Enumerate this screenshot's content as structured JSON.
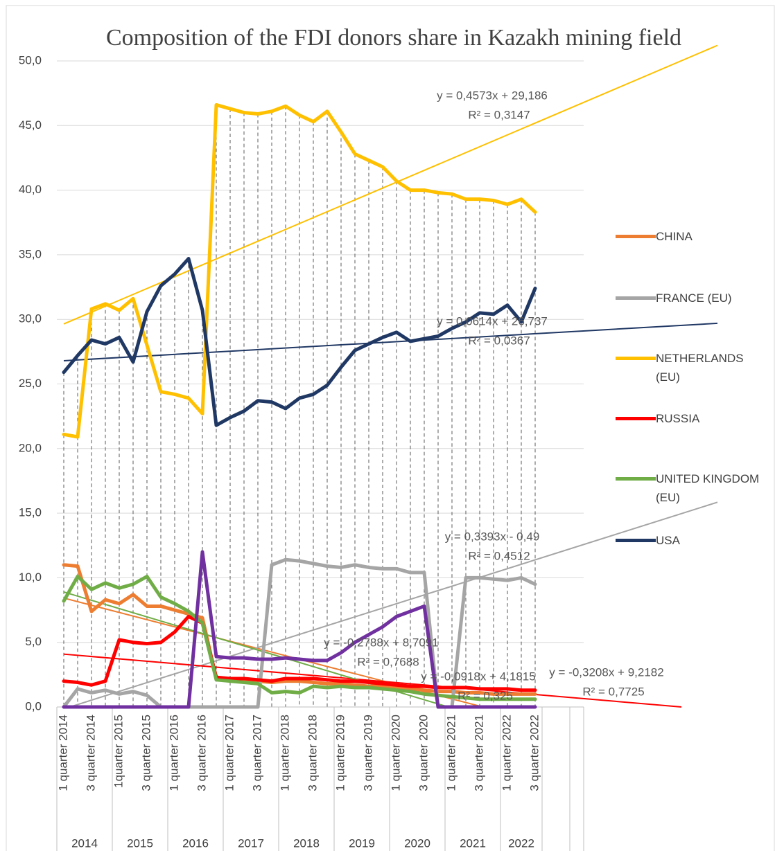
{
  "chart_data": {
    "type": "line",
    "title": "Composition of the FDI donors share in Kazakh mining field",
    "categories": [
      "1 quarter 2014",
      null,
      "3 quarter 2014",
      null,
      "1quarter 2015",
      null,
      "3 quarter 2015",
      null,
      "1 quarter 2016",
      null,
      "3 quarter 2016",
      null,
      "1 quarter 2017",
      null,
      "3 quarter 2017",
      null,
      "1 quarter 2018",
      null,
      "3 quarter 2018",
      null,
      "1 quarter 2019",
      null,
      "3 quarter 2019",
      null,
      "1 quarter 2020",
      null,
      "3 quarter 2020",
      null,
      "1 quarter 2021",
      null,
      "3 quarter 2021",
      null,
      "1 quarter 2022",
      null,
      "3 quarter 2022"
    ],
    "year_groups": [
      "2014",
      "2015",
      "2016",
      "2017",
      "2018",
      "2019",
      "2020",
      "2021",
      "2022"
    ],
    "ylim": [
      0,
      50
    ],
    "yticks": [
      {
        "value": 0,
        "label": "0,0"
      },
      {
        "value": 5,
        "label": "5,0"
      },
      {
        "value": 10,
        "label": "10,0"
      },
      {
        "value": 15,
        "label": "15,0"
      },
      {
        "value": 20,
        "label": "20,0"
      },
      {
        "value": 25,
        "label": "25,0"
      },
      {
        "value": 30,
        "label": "30,0"
      },
      {
        "value": 35,
        "label": "35,0"
      },
      {
        "value": 40,
        "label": "40,0"
      },
      {
        "value": 45,
        "label": "45,0"
      },
      {
        "value": 50,
        "label": "50,0"
      }
    ],
    "grid": true,
    "drop_lines": true,
    "legend": "right",
    "series": [
      {
        "name": "CHINA",
        "color": "#ed7d31",
        "values": [
          11.0,
          10.9,
          7.4,
          8.3,
          8.0,
          8.7,
          7.8,
          7.8,
          7.5,
          7.2,
          6.9,
          2.2,
          2.1,
          2.0,
          2.0,
          1.9,
          2.0,
          2.0,
          1.9,
          1.8,
          1.8,
          1.7,
          1.6,
          1.6,
          1.5,
          1.4,
          1.3,
          1.2,
          1.2,
          1.1,
          1.1,
          1.0,
          1.0,
          1.0,
          1.0
        ],
        "trend": {
          "equation": "y = -0,2788x + 8,7091",
          "r_squared": "R² = 0,7688",
          "slope": -0.2788,
          "intercept": 8.7091
        }
      },
      {
        "name": "FRANCE (EU)",
        "color": "#a5a5a5",
        "values": [
          0.0,
          1.4,
          1.1,
          1.3,
          1.0,
          1.2,
          0.9,
          0,
          0,
          0,
          0,
          0,
          0,
          0,
          0,
          11.0,
          11.4,
          11.3,
          11.1,
          10.9,
          10.8,
          11.0,
          10.8,
          10.7,
          10.7,
          10.4,
          10.4,
          0,
          0,
          10.0,
          10.0,
          9.9,
          9.8,
          10.0,
          9.5
        ],
        "trend": {
          "equation": "y = 0,3393x - 0,49",
          "r_squared": "R² = 0,4512",
          "slope": 0.3393,
          "intercept": -0.49
        }
      },
      {
        "name": "NETHERLANDS (EU)",
        "color": "#ffc000",
        "values": [
          21.1,
          20.9,
          30.8,
          31.2,
          30.7,
          31.6,
          28.0,
          24.4,
          24.2,
          23.9,
          22.7,
          46.6,
          46.3,
          46.0,
          45.9,
          46.1,
          46.5,
          45.8,
          45.3,
          46.1,
          44.5,
          42.8,
          42.3,
          41.8,
          40.7,
          40.0,
          40.0,
          39.8,
          39.7,
          39.3,
          39.3,
          39.2,
          38.9,
          39.3,
          38.3
        ],
        "trend": {
          "equation": "y = 0,4573x + 29,186",
          "r_squared": "R² = 0,3147",
          "slope": 0.4573,
          "intercept": 29.186
        }
      },
      {
        "name": "RUSSIA",
        "color": "#ff0000",
        "values": [
          2.0,
          1.9,
          1.7,
          2.0,
          5.2,
          5.0,
          4.9,
          5.0,
          5.8,
          7.0,
          6.5,
          2.3,
          2.2,
          2.2,
          2.1,
          2.0,
          2.2,
          2.2,
          2.2,
          2.1,
          2.0,
          2.0,
          1.9,
          1.8,
          1.7,
          1.6,
          1.6,
          1.5,
          1.5,
          1.5,
          1.4,
          1.4,
          1.4,
          1.3,
          1.3
        ],
        "trend": {
          "equation": "y = -0,0918x + 4,1815",
          "r_squared": "R² = 0,325",
          "slope": -0.0918,
          "intercept": 4.1815
        }
      },
      {
        "name": "UNITED KINGDOM (EU)",
        "color": "#70ad47",
        "values": [
          8.2,
          10.1,
          9.1,
          9.6,
          9.2,
          9.5,
          10.1,
          8.5,
          8.0,
          7.4,
          6.5,
          2.1,
          2.0,
          1.9,
          1.8,
          1.1,
          1.2,
          1.1,
          1.6,
          1.5,
          1.6,
          1.5,
          1.5,
          1.4,
          1.3,
          1.2,
          1.0,
          0.9,
          0.8,
          0.7,
          0.6,
          0.6,
          0.6,
          0.6,
          0.6
        ],
        "trend": {
          "equation": "y = -0,3208x + 9,2182",
          "r_squared": "R² = 0,7725",
          "slope": -0.3208,
          "intercept": 9.2182
        }
      },
      {
        "name": "USA",
        "color": "#203864",
        "values": [
          25.9,
          27.2,
          28.4,
          28.1,
          28.6,
          26.7,
          30.6,
          32.6,
          33.5,
          34.7,
          30.7,
          21.8,
          22.4,
          22.9,
          23.7,
          23.6,
          23.1,
          23.9,
          24.2,
          24.9,
          26.3,
          27.6,
          28.1,
          28.6,
          29.0,
          28.3,
          28.5,
          28.7,
          29.3,
          29.8,
          30.5,
          30.4,
          31.1,
          29.8,
          32.4
        ],
        "trend": {
          "equation": "y = 0,0614x + 26,737",
          "r_squared": "R² = 0,0367",
          "slope": 0.0614,
          "intercept": 26.737
        }
      },
      {
        "name": null,
        "color": "#7030a0",
        "values": [
          0,
          0,
          0,
          0,
          0,
          0,
          0,
          0,
          0,
          0,
          12.0,
          3.9,
          3.8,
          3.8,
          3.7,
          3.7,
          3.8,
          3.7,
          3.6,
          3.6,
          4.2,
          5.0,
          5.6,
          6.2,
          7.0,
          7.4,
          7.8,
          0,
          0,
          0,
          0,
          0,
          0,
          0,
          0
        ]
      }
    ]
  }
}
